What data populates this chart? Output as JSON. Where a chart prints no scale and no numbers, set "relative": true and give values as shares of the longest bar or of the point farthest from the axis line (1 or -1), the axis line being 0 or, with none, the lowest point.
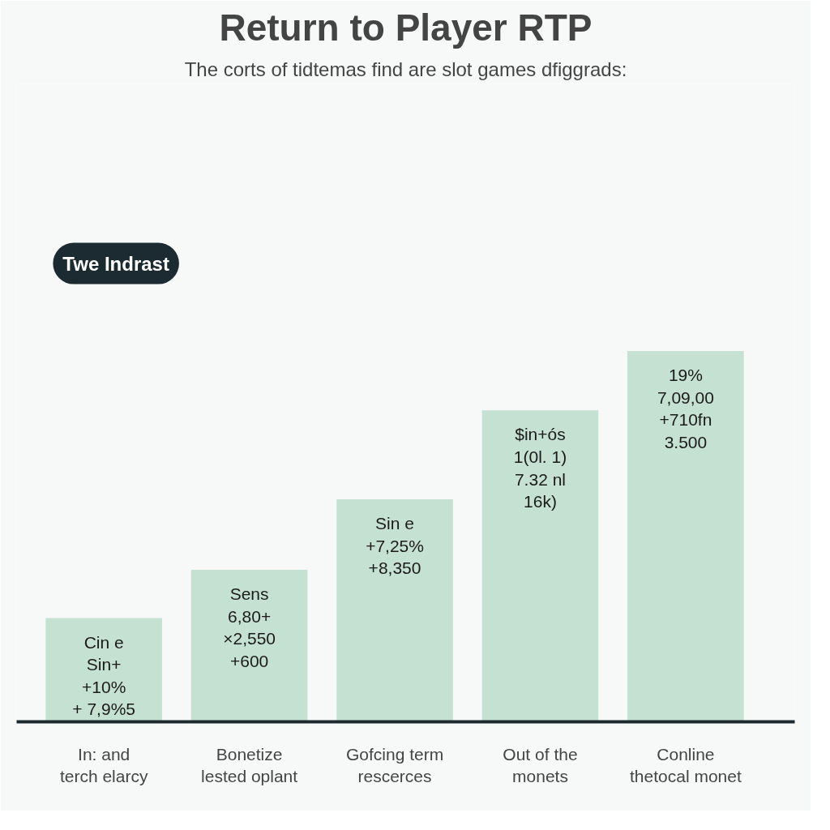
{
  "chart_data": {
    "type": "bar",
    "title": "Return to Player RTP",
    "subtitle": "The corts of tidtemas find are slot games dfiggrads:",
    "categories": [
      "In: and\nterch elarcy",
      "Bonetize\nlested oplant",
      "Gofcing term\nrescerces",
      "Out of the\nmonets",
      "Conline\nthetocal monet"
    ],
    "values": [
      0.28,
      0.41,
      0.6,
      0.84,
      1
    ],
    "relative": true,
    "color": "#c5e1d2",
    "grid": false,
    "annotations": [
      "Twe Indrast",
      "Cin e\nSin+\n+10%\n+ 7,9%5",
      "Sens\n6,80+\n×2,550\n+600",
      "Sin e\n+7,25%\n+8,350",
      "$in+ós\n1(0l. 1)\n7.32 nl\n16k)",
      "19%\n7,09,00\n+710fn\n3.500"
    ]
  }
}
